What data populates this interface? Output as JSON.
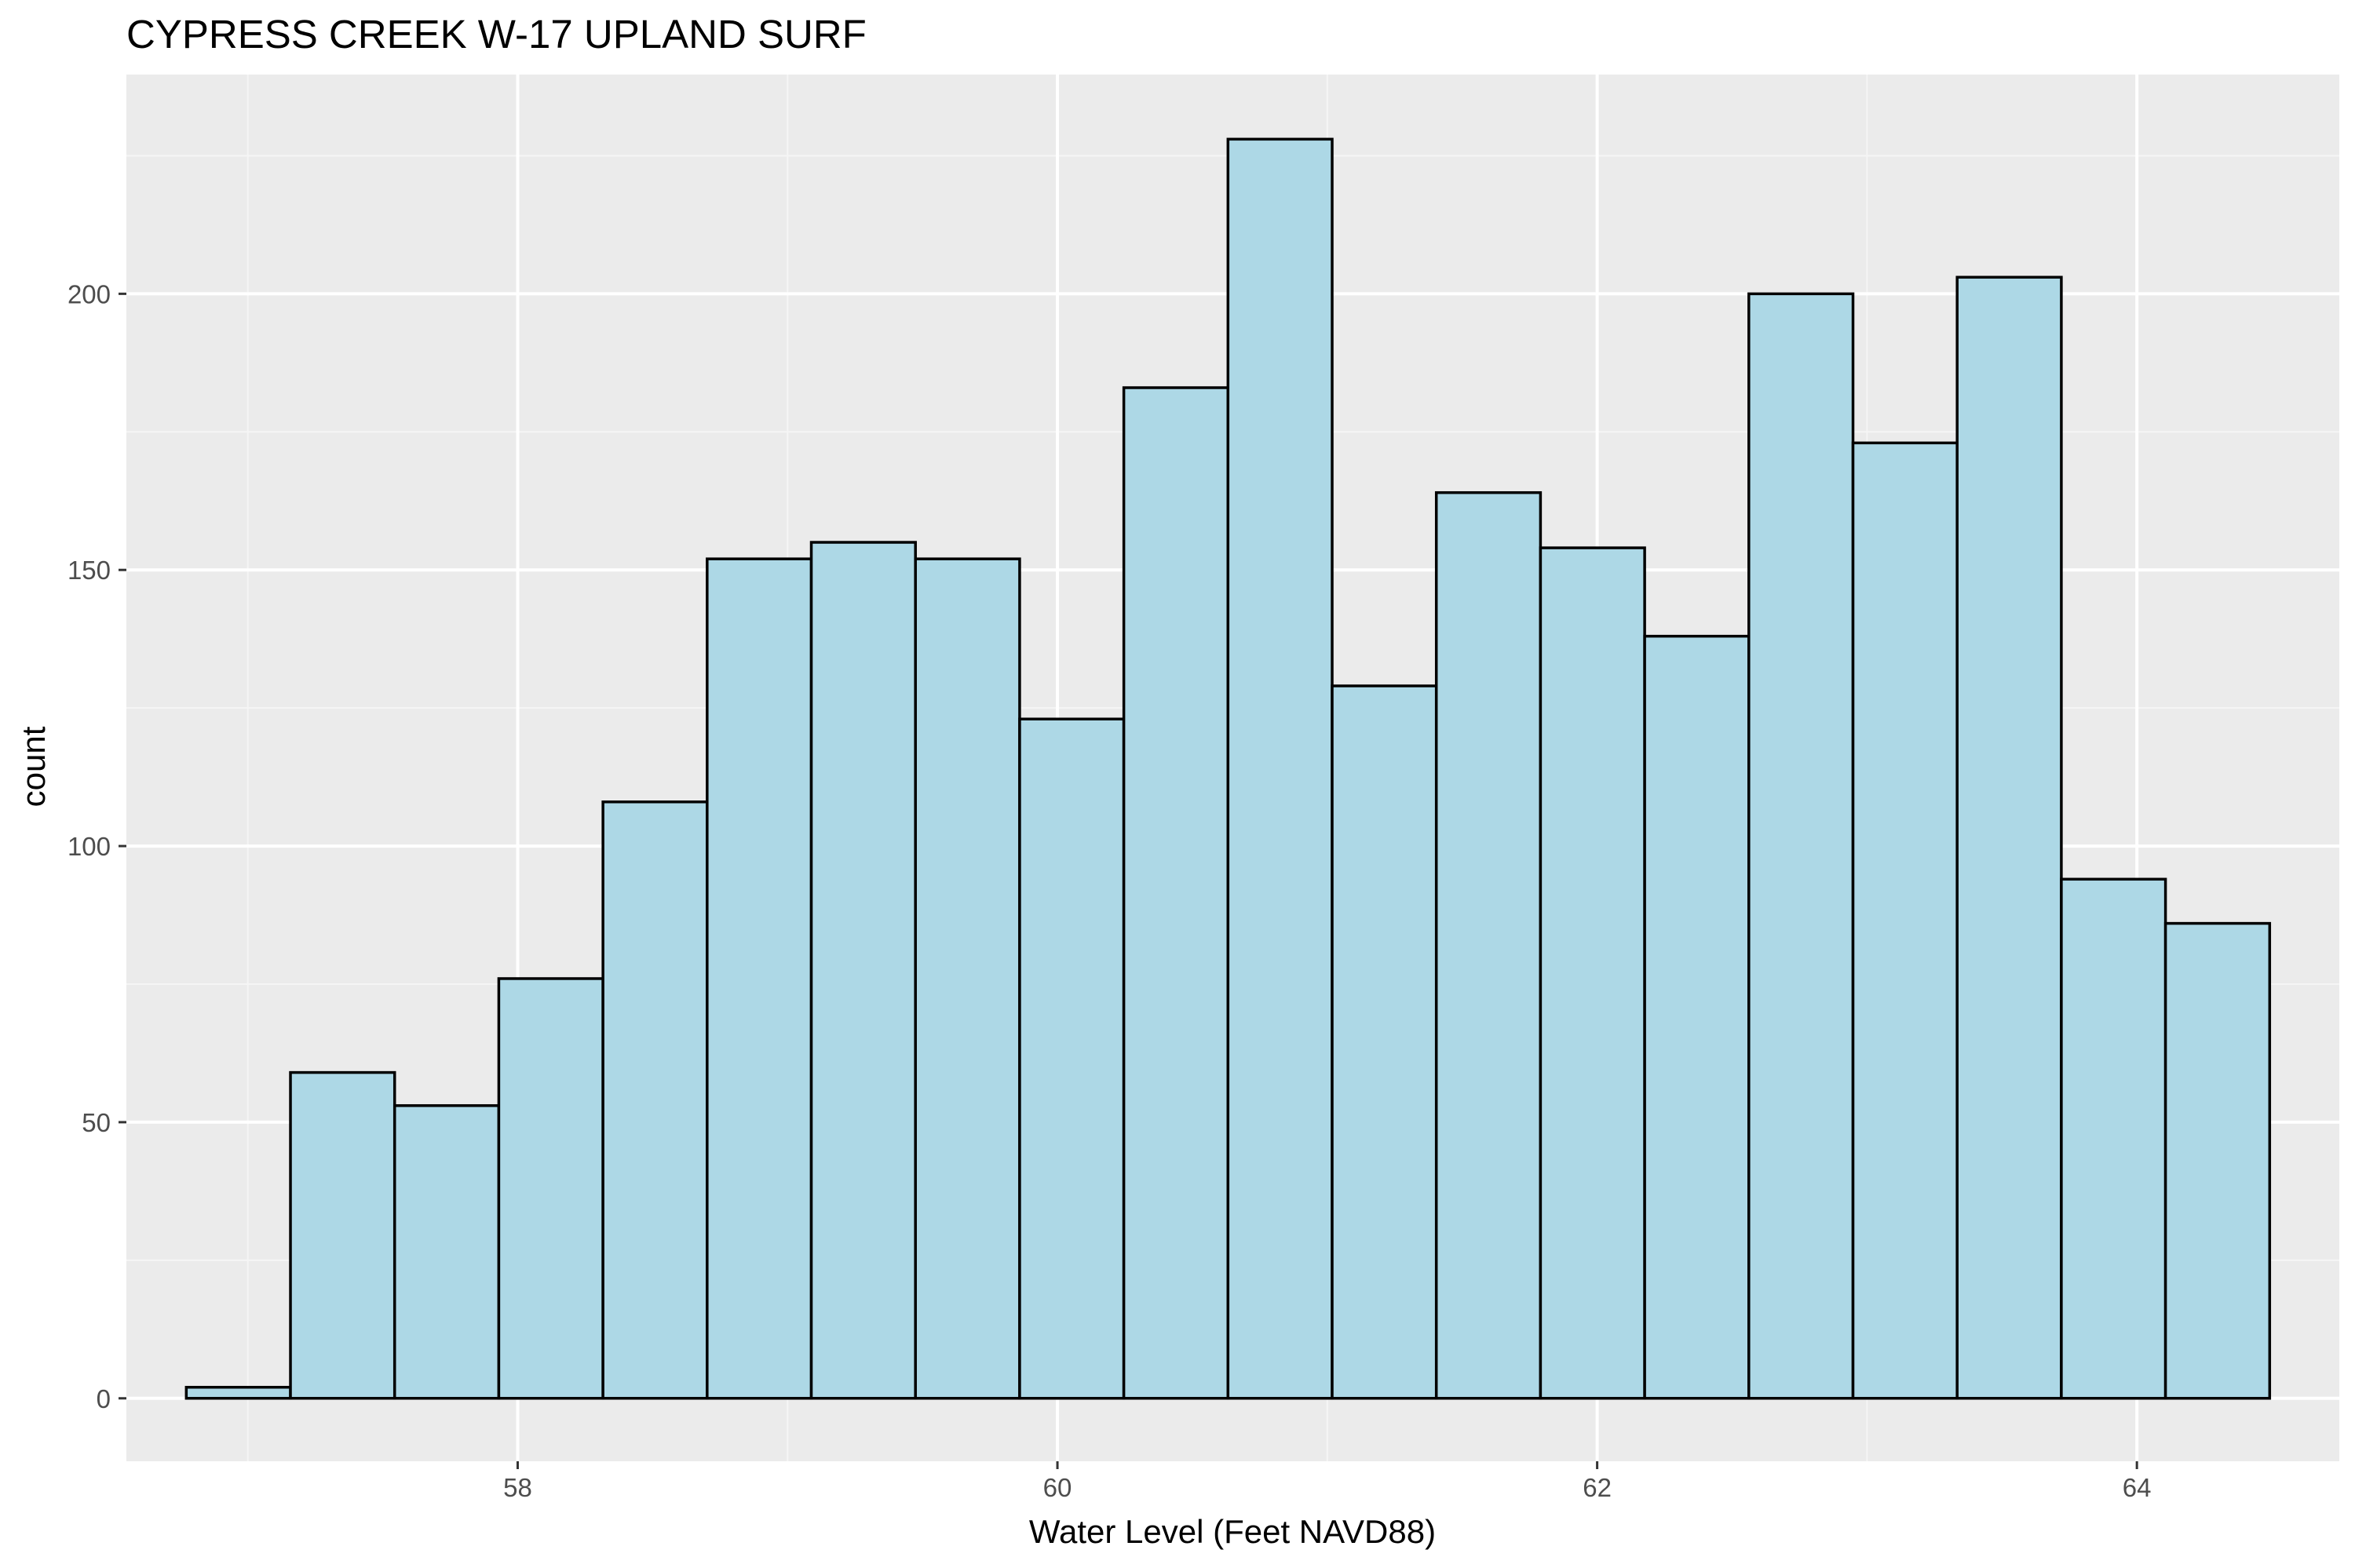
{
  "chart_data": {
    "type": "bar",
    "subtype": "histogram",
    "title": "CYPRESS CREEK W-17 UPLAND SURF",
    "xlabel": "Water Level (Feet NAVD88)",
    "ylabel": "count",
    "xlim": [
      56.55,
      64.75
    ],
    "ylim": [
      -11.4,
      239.7
    ],
    "x_ticks": [
      58,
      60,
      62,
      64
    ],
    "x_tick_labels": [
      "58",
      "60",
      "62",
      "64"
    ],
    "y_ticks": [
      0,
      50,
      100,
      150,
      200
    ],
    "y_tick_labels": [
      "0",
      "50",
      "100",
      "150",
      "200"
    ],
    "bin_width": 0.386,
    "bins": [
      {
        "x0": 56.772,
        "x1": 57.158,
        "count": 2
      },
      {
        "x0": 57.158,
        "x1": 57.544,
        "count": 59
      },
      {
        "x0": 57.544,
        "x1": 57.93,
        "count": 53
      },
      {
        "x0": 57.93,
        "x1": 58.316,
        "count": 76
      },
      {
        "x0": 58.316,
        "x1": 58.702,
        "count": 108
      },
      {
        "x0": 58.702,
        "x1": 59.088,
        "count": 152
      },
      {
        "x0": 59.088,
        "x1": 59.474,
        "count": 155
      },
      {
        "x0": 59.474,
        "x1": 59.86,
        "count": 152
      },
      {
        "x0": 59.86,
        "x1": 60.246,
        "count": 123
      },
      {
        "x0": 60.246,
        "x1": 60.632,
        "count": 183
      },
      {
        "x0": 60.632,
        "x1": 61.018,
        "count": 228
      },
      {
        "x0": 61.018,
        "x1": 61.404,
        "count": 129
      },
      {
        "x0": 61.404,
        "x1": 61.79,
        "count": 164
      },
      {
        "x0": 61.79,
        "x1": 62.176,
        "count": 154
      },
      {
        "x0": 62.176,
        "x1": 62.562,
        "count": 138
      },
      {
        "x0": 62.562,
        "x1": 62.948,
        "count": 200
      },
      {
        "x0": 62.948,
        "x1": 63.334,
        "count": 173
      },
      {
        "x0": 63.334,
        "x1": 63.72,
        "count": 203
      },
      {
        "x0": 63.72,
        "x1": 64.106,
        "count": 94
      },
      {
        "x0": 64.106,
        "x1": 64.492,
        "count": 86
      }
    ],
    "grid": true,
    "legend": "none",
    "colors": {
      "panel_background": "#ebebeb",
      "grid_major": "#ffffff",
      "grid_minor": "#f5f5f5",
      "bar_fill": "#add8e6",
      "bar_outline": "#000000",
      "tick_text": "#4d4d4d",
      "tick_mark": "#333333"
    }
  }
}
